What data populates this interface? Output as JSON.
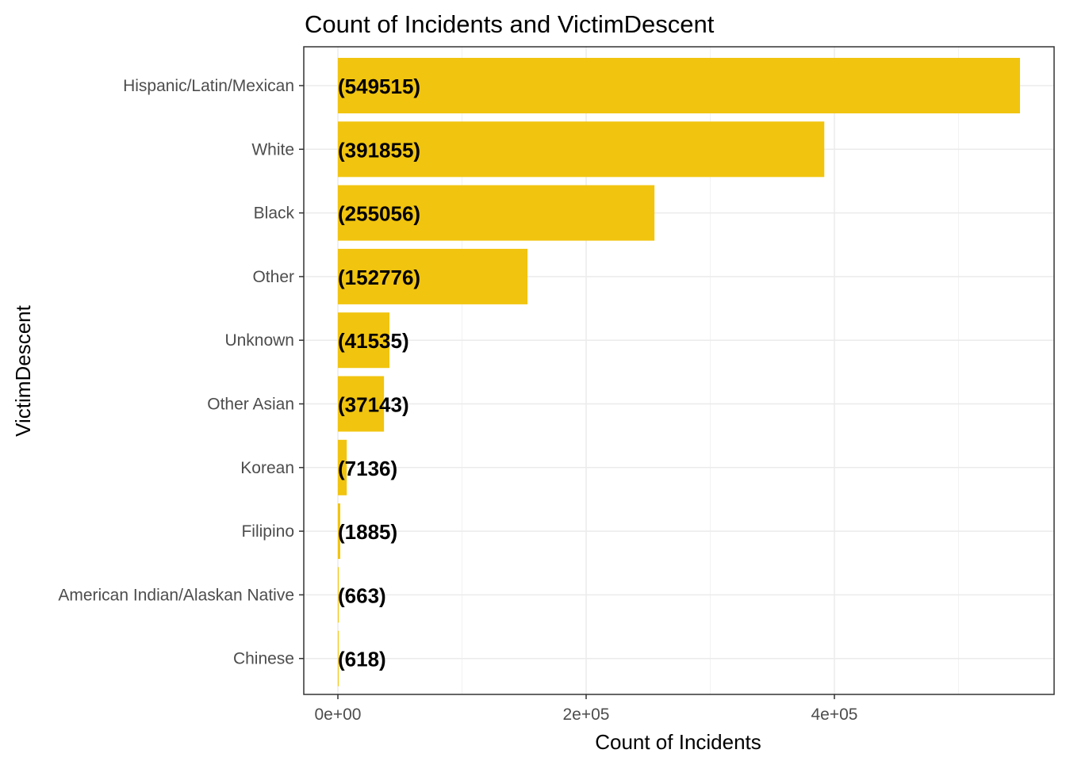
{
  "chart_data": {
    "type": "bar",
    "orientation": "horizontal",
    "title": "Count of Incidents and VictimDescent",
    "xlabel": "Count of Incidents",
    "ylabel": "VictimDescent",
    "categories": [
      "Hispanic/Latin/Mexican",
      "White",
      "Black",
      "Other",
      "Unknown",
      "Other Asian",
      "Korean",
      "Filipino",
      "American Indian/Alaskan Native",
      "Chinese"
    ],
    "values": [
      549515,
      391855,
      255056,
      152776,
      41535,
      37143,
      7136,
      1885,
      663,
      618
    ],
    "data_labels": [
      "(549515)",
      "(391855)",
      "(255056)",
      "(152776)",
      "(41535)",
      "(37143)",
      "(7136)",
      "(1885)",
      "(663)",
      "(618)"
    ],
    "x_ticks": [
      0,
      200000,
      400000
    ],
    "x_tick_labels": [
      "0e+00",
      "2e+05",
      "4e+05"
    ],
    "xlim": [
      -27476,
      577000
    ],
    "grid": true,
    "bar_color": "#F1C40F"
  }
}
